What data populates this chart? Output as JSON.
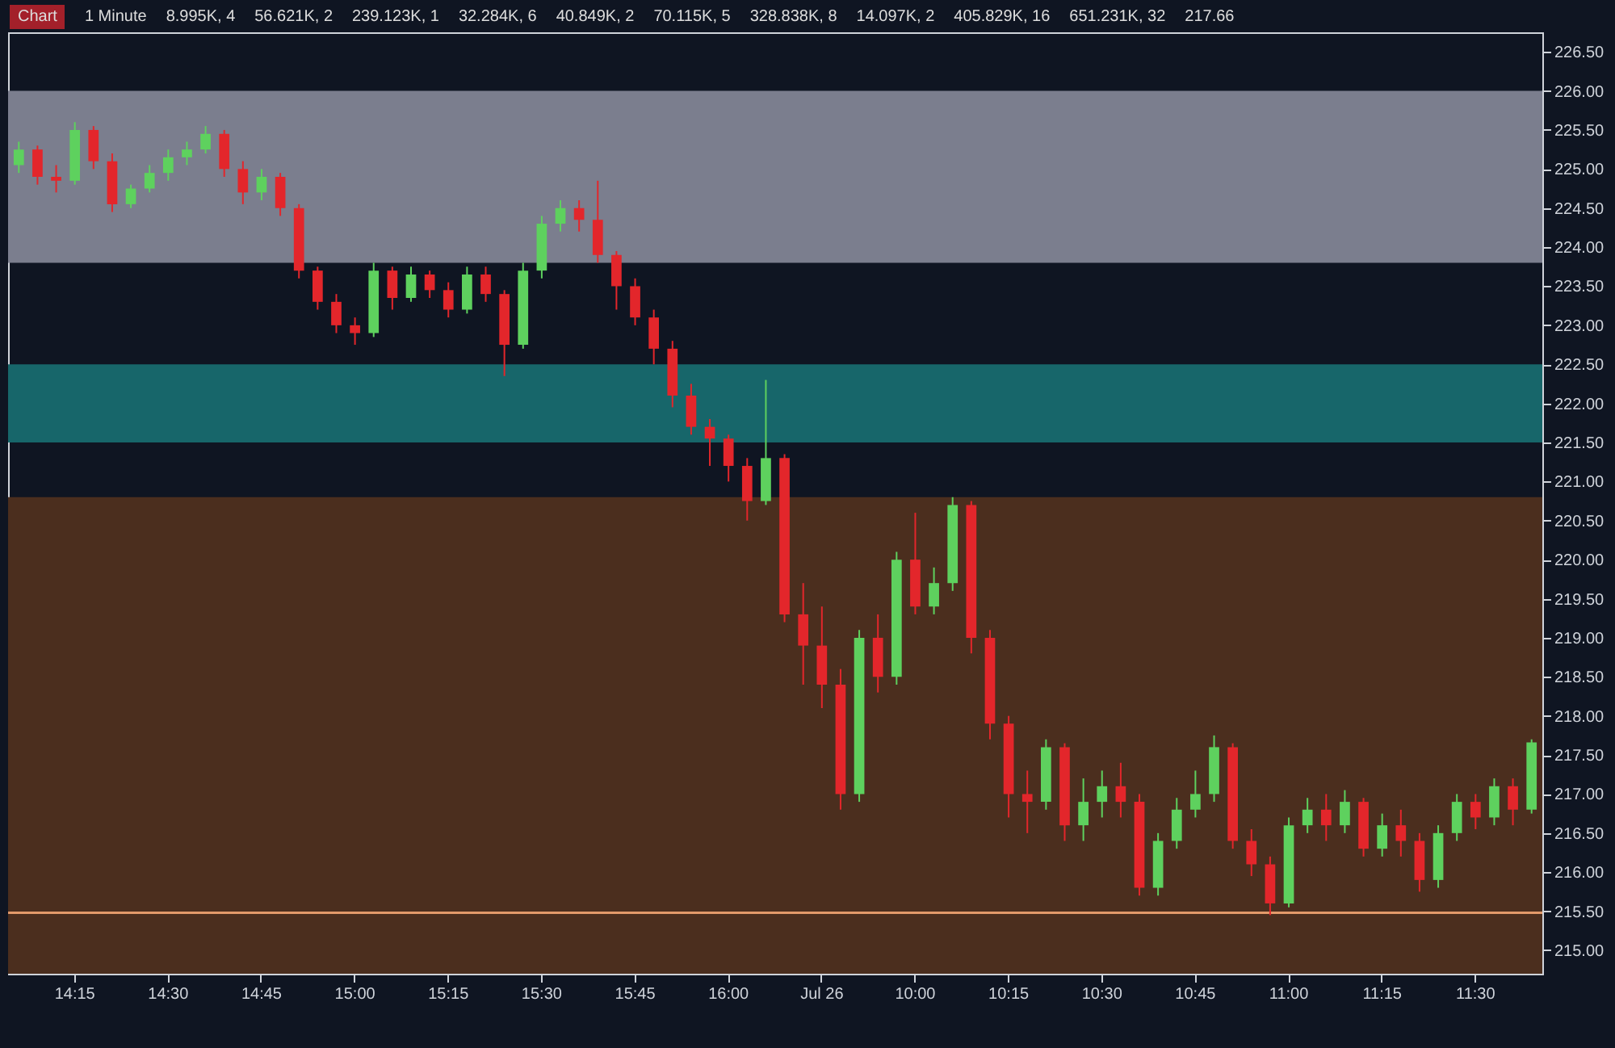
{
  "chart_data": {
    "type": "candlestick",
    "categories": [
      null,
      null,
      null,
      "14:15",
      null,
      null,
      null,
      null,
      "14:30",
      null,
      null,
      null,
      null,
      "14:45",
      null,
      null,
      null,
      null,
      "15:00",
      null,
      null,
      null,
      null,
      "15:15",
      null,
      null,
      null,
      null,
      "15:30",
      null,
      null,
      null,
      null,
      "15:45",
      null,
      null,
      null,
      null,
      "16:00",
      null,
      null,
      null,
      null,
      "Jul 26",
      null,
      null,
      null,
      null,
      "10:00",
      null,
      null,
      null,
      null,
      "10:15",
      null,
      null,
      null,
      null,
      "10:30",
      null,
      null,
      null,
      null,
      "10:45",
      null,
      null,
      null,
      null,
      "11:00",
      null,
      null,
      null,
      null,
      "11:15",
      null,
      null,
      null,
      null,
      "11:30",
      null,
      null,
      null
    ],
    "ohlc": [
      [
        225.05,
        225.35,
        224.95,
        225.25
      ],
      [
        225.25,
        225.3,
        224.8,
        224.9
      ],
      [
        224.9,
        225.05,
        224.7,
        224.85
      ],
      [
        224.85,
        225.6,
        224.8,
        225.5
      ],
      [
        225.5,
        225.55,
        225.0,
        225.1
      ],
      [
        225.1,
        225.2,
        224.45,
        224.55
      ],
      [
        224.55,
        224.8,
        224.5,
        224.75
      ],
      [
        224.75,
        225.05,
        224.7,
        224.95
      ],
      [
        224.95,
        225.25,
        224.85,
        225.15
      ],
      [
        225.15,
        225.35,
        225.05,
        225.25
      ],
      [
        225.25,
        225.55,
        225.2,
        225.45
      ],
      [
        225.45,
        225.5,
        224.9,
        225.0
      ],
      [
        225.0,
        225.1,
        224.55,
        224.7
      ],
      [
        224.7,
        225.0,
        224.6,
        224.9
      ],
      [
        224.9,
        224.95,
        224.4,
        224.5
      ],
      [
        224.5,
        224.55,
        223.6,
        223.7
      ],
      [
        223.7,
        223.75,
        223.2,
        223.3
      ],
      [
        223.3,
        223.4,
        222.9,
        223.0
      ],
      [
        223.0,
        223.1,
        222.75,
        222.9
      ],
      [
        222.9,
        223.8,
        222.85,
        223.7
      ],
      [
        223.7,
        223.75,
        223.2,
        223.35
      ],
      [
        223.35,
        223.75,
        223.3,
        223.65
      ],
      [
        223.65,
        223.7,
        223.35,
        223.45
      ],
      [
        223.45,
        223.55,
        223.1,
        223.2
      ],
      [
        223.2,
        223.75,
        223.15,
        223.65
      ],
      [
        223.65,
        223.75,
        223.3,
        223.4
      ],
      [
        223.4,
        223.45,
        222.35,
        222.75
      ],
      [
        222.75,
        223.8,
        222.7,
        223.7
      ],
      [
        223.7,
        224.4,
        223.6,
        224.3
      ],
      [
        224.3,
        224.6,
        224.2,
        224.5
      ],
      [
        224.5,
        224.6,
        224.2,
        224.35
      ],
      [
        224.35,
        224.85,
        223.8,
        223.9
      ],
      [
        223.9,
        223.95,
        223.2,
        223.5
      ],
      [
        223.5,
        223.6,
        223.0,
        223.1
      ],
      [
        223.1,
        223.2,
        222.5,
        222.7
      ],
      [
        222.7,
        222.8,
        221.95,
        222.1
      ],
      [
        222.1,
        222.25,
        221.6,
        221.7
      ],
      [
        221.7,
        221.8,
        221.2,
        221.55
      ],
      [
        221.55,
        221.6,
        221.0,
        221.2
      ],
      [
        221.2,
        221.3,
        220.5,
        220.75
      ],
      [
        220.75,
        222.3,
        220.7,
        221.3
      ],
      [
        221.3,
        221.35,
        219.2,
        219.3
      ],
      [
        219.3,
        219.7,
        218.4,
        218.9
      ],
      [
        218.9,
        219.4,
        218.1,
        218.4
      ],
      [
        218.4,
        218.6,
        216.8,
        217.0
      ],
      [
        217.0,
        219.1,
        216.9,
        219.0
      ],
      [
        219.0,
        219.3,
        218.3,
        218.5
      ],
      [
        218.5,
        220.1,
        218.4,
        220.0
      ],
      [
        220.0,
        220.6,
        219.3,
        219.4
      ],
      [
        219.4,
        219.9,
        219.3,
        219.7
      ],
      [
        219.7,
        220.8,
        219.6,
        220.7
      ],
      [
        220.7,
        220.75,
        218.8,
        219.0
      ],
      [
        219.0,
        219.1,
        217.7,
        217.9
      ],
      [
        217.9,
        218.0,
        216.7,
        217.0
      ],
      [
        217.0,
        217.3,
        216.5,
        216.9
      ],
      [
        216.9,
        217.7,
        216.8,
        217.6
      ],
      [
        217.6,
        217.65,
        216.4,
        216.6
      ],
      [
        216.6,
        217.2,
        216.4,
        216.9
      ],
      [
        216.9,
        217.3,
        216.7,
        217.1
      ],
      [
        217.1,
        217.4,
        216.7,
        216.9
      ],
      [
        216.9,
        217.0,
        215.7,
        215.8
      ],
      [
        215.8,
        216.5,
        215.7,
        216.4
      ],
      [
        216.4,
        216.95,
        216.3,
        216.8
      ],
      [
        216.8,
        217.3,
        216.7,
        217.0
      ],
      [
        217.0,
        217.75,
        216.9,
        217.6
      ],
      [
        217.6,
        217.65,
        216.3,
        216.4
      ],
      [
        216.4,
        216.55,
        215.95,
        216.1
      ],
      [
        216.1,
        216.2,
        215.45,
        215.6
      ],
      [
        215.6,
        216.7,
        215.55,
        216.6
      ],
      [
        216.6,
        216.95,
        216.5,
        216.8
      ],
      [
        216.8,
        217.0,
        216.4,
        216.6
      ],
      [
        216.6,
        217.05,
        216.5,
        216.9
      ],
      [
        216.9,
        216.95,
        216.2,
        216.3
      ],
      [
        216.3,
        216.75,
        216.2,
        216.6
      ],
      [
        216.6,
        216.8,
        216.2,
        216.4
      ],
      [
        216.4,
        216.5,
        215.75,
        215.9
      ],
      [
        215.9,
        216.6,
        215.8,
        216.5
      ],
      [
        216.5,
        217.0,
        216.4,
        216.9
      ],
      [
        216.9,
        217.0,
        216.55,
        216.7
      ],
      [
        216.7,
        217.2,
        216.6,
        217.1
      ],
      [
        217.1,
        217.2,
        216.6,
        216.8
      ],
      [
        216.8,
        217.7,
        216.75,
        217.66
      ]
    ],
    "colors": [
      "#5ed15e",
      "#e3262b",
      "#e3262b",
      "#5ed15e",
      "#e3262b",
      "#e3262b",
      "#5ed15e",
      "#5ed15e",
      "#5ed15e",
      "#5ed15e",
      "#5ed15e",
      "#e3262b",
      "#e3262b",
      "#5ed15e",
      "#e3262b",
      "#e3262b",
      "#e3262b",
      "#e3262b",
      "#e3262b",
      "#5ed15e",
      "#e3262b",
      "#5ed15e",
      "#e3262b",
      "#e3262b",
      "#5ed15e",
      "#e3262b",
      "#e3262b",
      "#5ed15e",
      "#5ed15e",
      "#5ed15e",
      "#e3262b",
      "#e3262b",
      "#e3262b",
      "#e3262b",
      "#e3262b",
      "#e3262b",
      "#e3262b",
      "#e3262b",
      "#e3262b",
      "#e3262b",
      "#5ed15e",
      "#e3262b",
      "#e3262b",
      "#e3262b",
      "#e3262b",
      "#5ed15e",
      "#e3262b",
      "#5ed15e",
      "#e3262b",
      "#5ed15e",
      "#5ed15e",
      "#e3262b",
      "#e3262b",
      "#e3262b",
      "#e3262b",
      "#5ed15e",
      "#e3262b",
      "#5ed15e",
      "#5ed15e",
      "#e3262b",
      "#e3262b",
      "#5ed15e",
      "#5ed15e",
      "#5ed15e",
      "#5ed15e",
      "#e3262b",
      "#e3262b",
      "#e3262b",
      "#5ed15e",
      "#5ed15e",
      "#e3262b",
      "#5ed15e",
      "#e3262b",
      "#5ed15e",
      "#e3262b",
      "#e3262b",
      "#5ed15e",
      "#5ed15e",
      "#e3262b",
      "#5ed15e",
      "#e3262b",
      "#5ed15e"
    ],
    "ylim": [
      214.7,
      226.75
    ],
    "yticks": [
      {
        "value": 215,
        "label": "215.00"
      },
      {
        "value": 215.5,
        "label": "215.50"
      },
      {
        "value": 216,
        "label": "216.00"
      },
      {
        "value": 216.5,
        "label": "216.50"
      },
      {
        "value": 217,
        "label": "217.00"
      },
      {
        "value": 217.5,
        "label": "217.50"
      },
      {
        "value": 218,
        "label": "218.00"
      },
      {
        "value": 218.5,
        "label": "218.50"
      },
      {
        "value": 219,
        "label": "219.00"
      },
      {
        "value": 219.5,
        "label": "219.50"
      },
      {
        "value": 220,
        "label": "220.00"
      },
      {
        "value": 220.5,
        "label": "220.50"
      },
      {
        "value": 221,
        "label": "221.00"
      },
      {
        "value": 221.5,
        "label": "221.50"
      },
      {
        "value": 222,
        "label": "222.00"
      },
      {
        "value": 222.5,
        "label": "222.50"
      },
      {
        "value": 223,
        "label": "223.00"
      },
      {
        "value": 223.5,
        "label": "223.50"
      },
      {
        "value": 224,
        "label": "224.00"
      },
      {
        "value": 224.5,
        "label": "224.50"
      },
      {
        "value": 225,
        "label": "225.00"
      },
      {
        "value": 225.5,
        "label": "225.50"
      },
      {
        "value": 226,
        "label": "226.00"
      },
      {
        "value": 226.5,
        "label": "226.50"
      }
    ],
    "bands": [
      {
        "axis": "y",
        "from": 223.8,
        "to": 226.0,
        "color": "#7b7e8e"
      },
      {
        "axis": "y",
        "from": 221.5,
        "to": 222.5,
        "color": "#17666a"
      },
      {
        "axis": "y",
        "from": 214.7,
        "to": 220.8,
        "color": "#4b2e1e"
      }
    ],
    "ref_lines": [
      {
        "axis": "y",
        "value": 215.48,
        "color": "#e39a6a"
      }
    ],
    "annotations": [
      "Chart",
      "1 Minute",
      "8.995K, 4",
      "56.621K, 2",
      "239.123K, 1",
      "32.284K, 6",
      "40.849K, 2",
      "70.115K, 5",
      "328.838K, 8",
      "14.097K, 2",
      "405.829K, 16",
      "651.231K, 32",
      "217.66"
    ]
  }
}
